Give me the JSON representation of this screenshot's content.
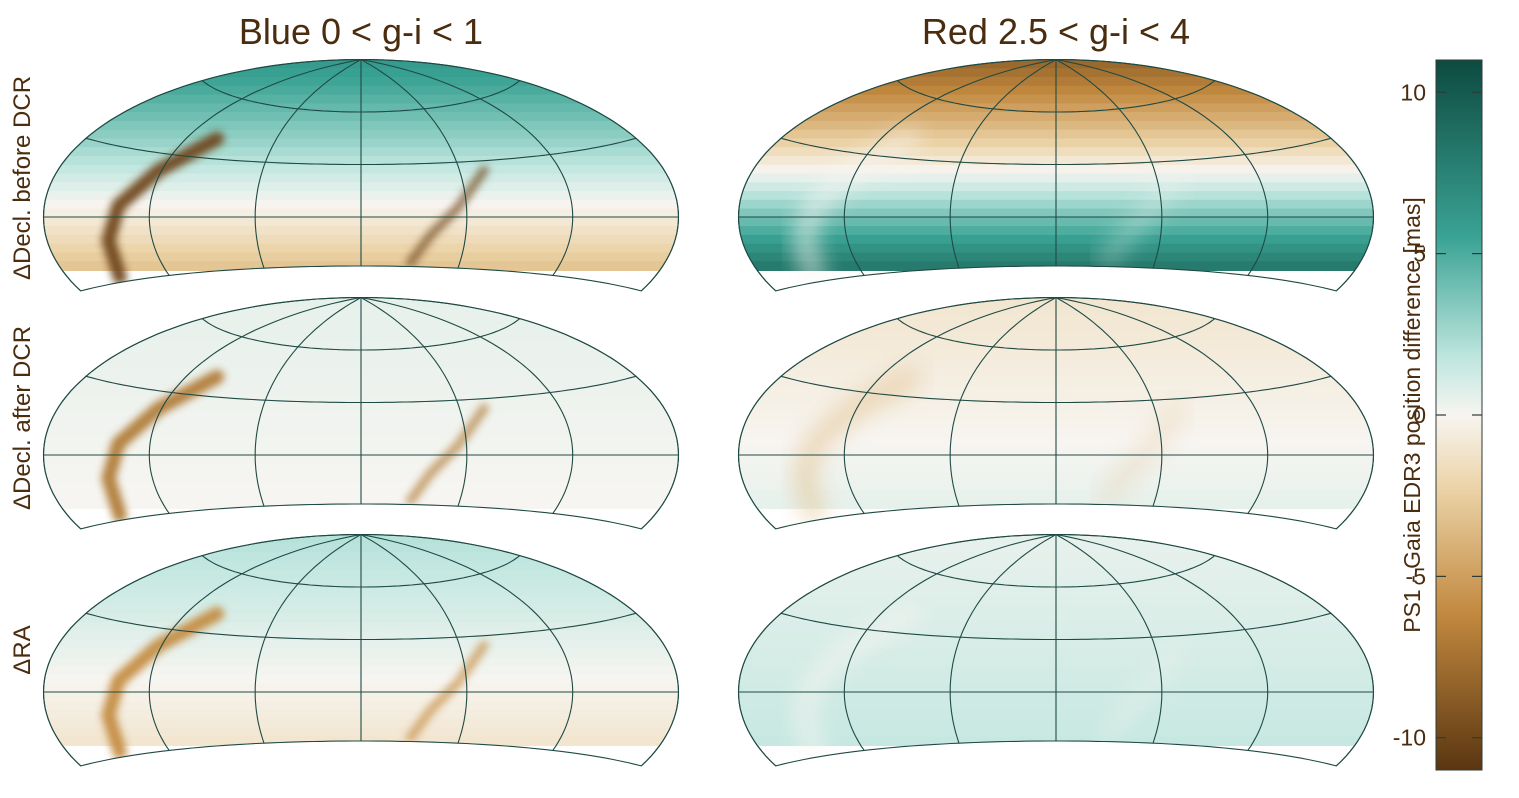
{
  "chart_data": {
    "type": "heatmap",
    "projection": "Aitoff-style all-sky map, partial sky (southern limit cut)",
    "columns": [
      "Blue 0 < g-i < 1",
      "Red 2.5 < g-i < 4"
    ],
    "rows": [
      "ΔDecl. before DCR",
      "ΔDecl. after DCR",
      "ΔRA"
    ],
    "colorbar": {
      "label": "PS1 - Gaia EDR3 position difference [mas]",
      "ticks": [
        "10",
        "5",
        "0",
        "-5",
        "-10"
      ],
      "range": [
        -11,
        11
      ],
      "colors": {
        "low": "#5a3611",
        "mid": "#f7f5f1",
        "high": "#0d4a40"
      }
    },
    "panels": [
      {
        "column": 0,
        "row": 0,
        "pattern": "positive (teal) in northern cap, negative (brown) toward equator and south, strong negative streak along galactic plane",
        "north_value": 6,
        "south_value": -3,
        "streak_value": -10
      },
      {
        "column": 1,
        "row": 0,
        "pattern": "negative (brown) in north, positive (teal) in south, light band along galactic plane",
        "north_value": -8,
        "south_value": 8,
        "streak_value": 0
      },
      {
        "column": 0,
        "row": 1,
        "pattern": "near zero, residual streak teal/brown along galactic plane",
        "north_value": 0.5,
        "south_value": 0,
        "streak_value": -7
      },
      {
        "column": 1,
        "row": 1,
        "pattern": "near zero, slight brown mottling",
        "north_value": -1,
        "south_value": 0.5,
        "streak_value": -3
      },
      {
        "column": 0,
        "row": 2,
        "pattern": "teal patch in north-east, slight brown elsewhere, streak along galactic plane",
        "north_value": 2,
        "south_value": -1,
        "streak_value": -6
      },
      {
        "column": 1,
        "row": 2,
        "pattern": "mostly slight teal with brown mottling",
        "north_value": 0.5,
        "south_value": 1.5,
        "streak_value": 0
      }
    ]
  }
}
